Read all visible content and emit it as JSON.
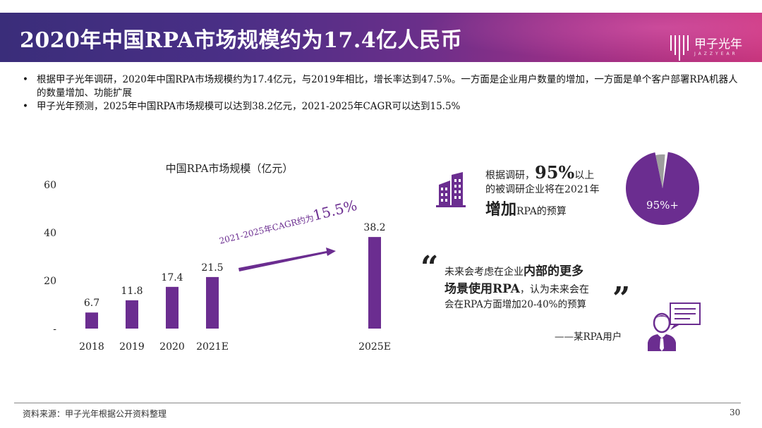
{
  "header": {
    "title": "2020年中国RPA市场规模约为17.4亿人民币",
    "logo_text": "甲子光年",
    "logo_sub": "JAZZYEAR"
  },
  "bullets": [
    "根据甲子光年调研，2020年中国RPA市场规模约为17.4亿元，与2019年相比，增长率达到47.5%。一方面是企业用户数量的增加，一方面是单个客户部署RPA机器人的数量增加、功能扩展",
    "甲子光年预测，2025年中国RPA市场规模可以达到38.2亿元，2021-2025年CAGR可以达到15.5%"
  ],
  "chart_data": {
    "type": "bar",
    "title": "中国RPA市场规模（亿元）",
    "categories": [
      "2018",
      "2019",
      "2020",
      "2021E",
      "2025E"
    ],
    "values": [
      6.7,
      11.8,
      17.4,
      21.5,
      38.2
    ],
    "value_labels": [
      "6.7",
      "11.8",
      "17.4",
      "21.5",
      "38.2"
    ],
    "ylim": [
      0,
      60
    ],
    "y_ticks": [
      "-",
      "20",
      "40",
      "60"
    ],
    "y_tick_values": [
      0,
      20,
      40,
      60
    ],
    "bar_color": "#6b2d90",
    "annotation": {
      "prefix": "2021-2025年CAGR约为",
      "value": "15.5%"
    }
  },
  "survey": {
    "line1_prefix": "根据调研，",
    "line1_big": "95%",
    "line1_suffix": "以上",
    "line2": "的被调研企业将在2021年",
    "line3_big": "增加",
    "line3_suffix": "RPA的预算",
    "pie_value": 95,
    "pie_label": "95%+",
    "pie_color": "#6b2d90",
    "pie_rest_color": "#9e9e9e"
  },
  "quote": {
    "open": "“",
    "close": "”",
    "line1_prefix": "未来会考虑在企业",
    "line1_em": "内部的更多",
    "line2_em": "场景使用RPA",
    "line2_suffix": "，认为未来会在",
    "line3": "会在RPA方面增加20-40%的预算",
    "attribution": "——某RPA用户"
  },
  "footer": {
    "source": "资料来源：甲子光年根据公开资料整理",
    "page": "30"
  },
  "colors": {
    "accent": "#6b2d90",
    "header_start": "#3a2d7a",
    "header_end": "#c8367e"
  }
}
